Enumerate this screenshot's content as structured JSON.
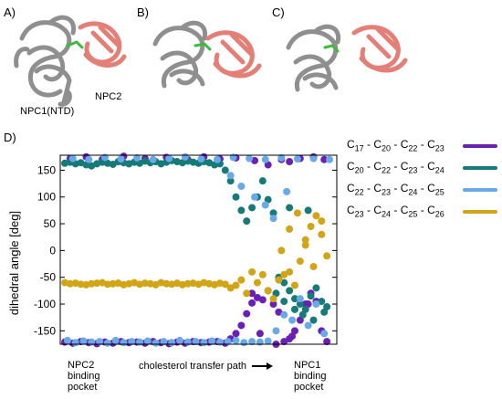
{
  "panels": {
    "a_label": "A)",
    "b_label": "B)",
    "c_label": "C)",
    "d_label": "D)",
    "npc1_label": "NPC1(NTD)",
    "npc2_label": "NPC2"
  },
  "colors": {
    "protein_gray": "#8f8f8f",
    "protein_pink": "#e37f76",
    "ligand_green": "#3dbb3d"
  },
  "chart_data": {
    "type": "scatter",
    "ylabel": "dihedral angle [deg]",
    "ylim": [
      -175,
      178
    ],
    "yticks": [
      150,
      100,
      50,
      0,
      -50,
      -100,
      -150
    ],
    "xlim": [
      0,
      100
    ],
    "grid": false,
    "x_annotations": {
      "left": [
        "NPC2",
        "binding",
        "pocket"
      ],
      "middle": "cholesterol transfer path",
      "right": [
        "NPC1",
        "binding",
        "pocket"
      ]
    },
    "legend_position": "right",
    "series": [
      {
        "name_parts": [
          [
            "C",
            "17"
          ],
          [
            " - C",
            "20"
          ],
          [
            " - C",
            "22"
          ],
          [
            " - C",
            "23"
          ]
        ],
        "color": "#6a1fb5",
        "x": [
          0,
          3,
          6,
          9,
          12,
          15,
          18,
          21,
          24,
          27,
          30,
          33,
          36,
          39,
          42,
          45,
          48,
          51,
          54,
          57,
          60,
          62,
          64,
          66,
          68,
          70,
          72,
          74,
          76,
          78,
          80,
          82,
          84,
          86,
          88,
          90,
          92,
          94,
          96,
          98,
          2,
          8,
          14,
          22,
          30,
          38,
          46,
          52,
          58,
          64,
          71,
          76,
          81,
          84,
          88,
          93,
          97,
          70,
          73,
          79,
          85,
          91
        ],
        "y": [
          -171,
          -173,
          -170,
          -172,
          -174,
          -171,
          -173,
          -170,
          -172,
          -171,
          -173,
          -170,
          -172,
          -174,
          -171,
          -173,
          -170,
          -172,
          -171,
          -170,
          -173,
          -165,
          -155,
          -140,
          -118,
          -98,
          -88,
          -92,
          -75,
          -100,
          -115,
          -170,
          -165,
          -150,
          -130,
          -100,
          -80,
          -95,
          -150,
          -170,
          172,
          175,
          170,
          176,
          172,
          174,
          170,
          175,
          171,
          173,
          168,
          160,
          170,
          166,
          172,
          175,
          170,
          -80,
          -155,
          -175,
          -160,
          -100
        ]
      },
      {
        "name_parts": [
          [
            "C",
            "20"
          ],
          [
            " - C",
            "22"
          ],
          [
            " - C",
            "23"
          ],
          [
            " - C",
            "24"
          ]
        ],
        "color": "#167a78",
        "x": [
          0,
          2,
          4,
          6,
          8,
          10,
          12,
          14,
          16,
          18,
          20,
          22,
          24,
          26,
          28,
          30,
          32,
          34,
          36,
          38,
          40,
          42,
          44,
          46,
          48,
          50,
          52,
          54,
          56,
          58,
          60,
          62,
          64,
          66,
          68,
          70,
          72,
          74,
          76,
          78,
          80,
          82,
          84,
          86,
          88,
          90,
          92,
          94,
          96,
          98,
          79,
          82,
          86,
          89,
          93,
          97,
          84,
          91
        ],
        "y": [
          163,
          165,
          162,
          164,
          160,
          158,
          162,
          165,
          163,
          161,
          166,
          164,
          162,
          165,
          163,
          167,
          164,
          166,
          162,
          165,
          168,
          166,
          164,
          167,
          165,
          163,
          166,
          164,
          160,
          162,
          150,
          130,
          100,
          75,
          55,
          80,
          100,
          130,
          95,
          70,
          -50,
          -60,
          -75,
          -90,
          -100,
          -110,
          -85,
          -70,
          -95,
          -105,
          -80,
          -95,
          -110,
          -120,
          -130,
          -115,
          80,
          75
        ]
      },
      {
        "name_parts": [
          [
            "C",
            "22"
          ],
          [
            " - C",
            "23"
          ],
          [
            " - C",
            "24"
          ],
          [
            " - C",
            "25"
          ]
        ],
        "color": "#6aa9e8",
        "x": [
          1,
          4,
          7,
          10,
          13,
          16,
          19,
          22,
          25,
          28,
          31,
          34,
          37,
          40,
          43,
          46,
          49,
          52,
          55,
          58,
          61,
          64,
          67,
          70,
          73,
          76,
          79,
          82,
          85,
          88,
          91,
          94,
          97,
          3,
          9,
          15,
          21,
          27,
          33,
          39,
          45,
          51,
          57,
          63,
          69,
          75,
          81,
          87,
          93,
          99,
          62,
          66,
          71,
          75,
          78,
          83
        ],
        "y": [
          -168,
          -172,
          -169,
          -171,
          -170,
          -173,
          -168,
          -172,
          -170,
          -171,
          -169,
          -173,
          -170,
          -172,
          -168,
          -171,
          -170,
          -172,
          -169,
          -171,
          -170,
          -168,
          -172,
          -170,
          -171,
          -169,
          -150,
          -120,
          -130,
          -90,
          -140,
          -100,
          -155,
          172,
          170,
          174,
          171,
          173,
          170,
          172,
          175,
          171,
          170,
          174,
          172,
          170,
          173,
          171,
          172,
          170,
          140,
          120,
          100,
          85,
          60,
          110
        ]
      },
      {
        "name_parts": [
          [
            "C",
            "23"
          ],
          [
            " - C",
            "24"
          ],
          [
            " - C",
            "25"
          ],
          [
            " - C",
            "26"
          ]
        ],
        "color": "#d2a516",
        "x": [
          0,
          2,
          4,
          6,
          8,
          10,
          12,
          14,
          16,
          18,
          20,
          22,
          24,
          26,
          28,
          30,
          32,
          34,
          36,
          38,
          40,
          42,
          44,
          46,
          48,
          50,
          52,
          54,
          56,
          58,
          60,
          62,
          64,
          66,
          68,
          70,
          72,
          74,
          76,
          78,
          80,
          82,
          84,
          86,
          88,
          90,
          92,
          94,
          96,
          98,
          81,
          84,
          87,
          90,
          93,
          96
        ],
        "y": [
          -60,
          -62,
          -61,
          -63,
          -64,
          -62,
          -61,
          -60,
          -63,
          -62,
          -61,
          -64,
          -62,
          -60,
          -63,
          -61,
          -62,
          -64,
          -60,
          -62,
          -63,
          -61,
          -64,
          -62,
          -61,
          -63,
          -60,
          -62,
          -64,
          -61,
          -63,
          -70,
          -65,
          -55,
          -80,
          -40,
          -60,
          -45,
          -75,
          -90,
          -55,
          -45,
          -40,
          -65,
          -20,
          20,
          45,
          65,
          30,
          -10,
          0,
          40,
          70,
          10,
          -30,
          55
        ]
      }
    ]
  }
}
